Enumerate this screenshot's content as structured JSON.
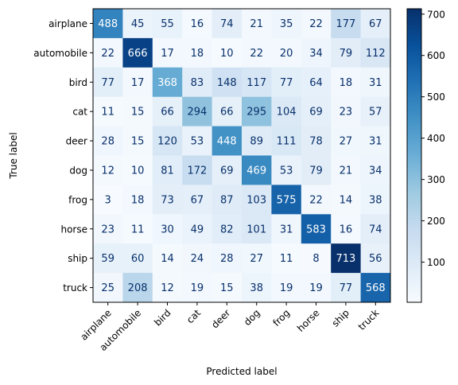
{
  "chart_data": {
    "type": "heatmap",
    "title": "",
    "xlabel": "Predicted label",
    "ylabel": "True label",
    "x_categories": [
      "airplane",
      "automobile",
      "bird",
      "cat",
      "deer",
      "dog",
      "frog",
      "horse",
      "ship",
      "truck"
    ],
    "y_categories": [
      "airplane",
      "automobile",
      "bird",
      "cat",
      "deer",
      "dog",
      "frog",
      "horse",
      "ship",
      "truck"
    ],
    "values": [
      [
        488,
        45,
        55,
        16,
        74,
        21,
        35,
        22,
        177,
        67
      ],
      [
        22,
        666,
        17,
        18,
        10,
        22,
        20,
        34,
        79,
        112
      ],
      [
        77,
        17,
        368,
        83,
        148,
        117,
        77,
        64,
        18,
        31
      ],
      [
        11,
        15,
        66,
        294,
        66,
        295,
        104,
        69,
        23,
        57
      ],
      [
        28,
        15,
        120,
        53,
        448,
        89,
        111,
        78,
        27,
        31
      ],
      [
        12,
        10,
        81,
        172,
        69,
        469,
        53,
        79,
        21,
        34
      ],
      [
        3,
        18,
        73,
        67,
        87,
        103,
        575,
        22,
        14,
        38
      ],
      [
        23,
        11,
        30,
        49,
        82,
        101,
        31,
        583,
        16,
        74
      ],
      [
        59,
        60,
        14,
        24,
        28,
        27,
        11,
        8,
        713,
        56
      ],
      [
        25,
        208,
        12,
        19,
        15,
        38,
        19,
        19,
        77,
        568
      ]
    ],
    "colormap": "Blues",
    "colorbar": {
      "min": 3,
      "max": 713,
      "ticks": [
        100,
        200,
        300,
        400,
        500,
        600,
        700
      ]
    },
    "grid": false
  }
}
